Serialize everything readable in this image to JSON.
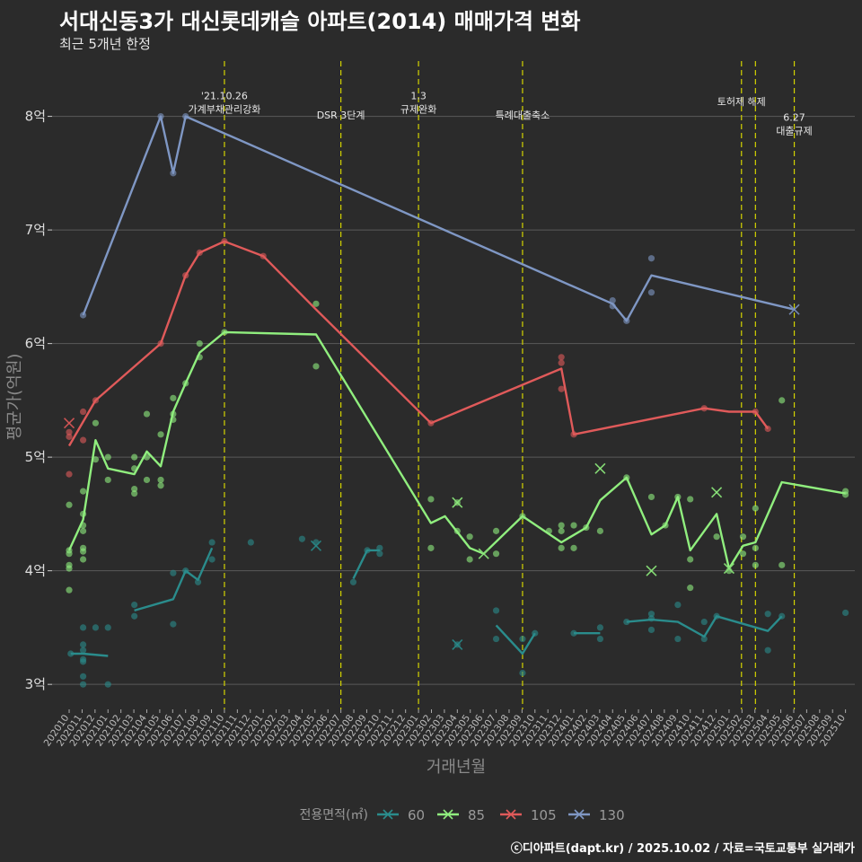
{
  "header": {
    "title": "서대신동3가 대신롯데캐슬 아파트(2014) 매매가격 변화",
    "subtitle": "최근 5개년 한정",
    "caption": "ⓒ디아파트(dapt.kr) / 2025.10.02 / 자료=국토교통부 실거래가"
  },
  "chart_data": {
    "type": "line",
    "title": "서대신동3가 대신롯데캐슬 아파트(2014) 매매가격 변화",
    "xlabel": "거래년월",
    "ylabel": "평균가(억원)",
    "ylim": [
      2.78,
      8.55
    ],
    "xlim": [
      2020.68,
      2025.85
    ],
    "yticks": [
      3,
      4,
      5,
      6,
      7,
      8
    ],
    "ytick_labels": [
      "3억",
      "4억",
      "5억",
      "6억",
      "7억",
      "8억"
    ],
    "xtick_labels": [
      "202010",
      "202011",
      "202012",
      "202101",
      "202102",
      "202103",
      "202104",
      "202105",
      "202106",
      "202107",
      "202108",
      "202109",
      "202110",
      "202111",
      "202112",
      "202201",
      "202202",
      "202203",
      "202204",
      "202205",
      "202206",
      "202207",
      "202208",
      "202209",
      "202210",
      "202211",
      "202212",
      "202301",
      "202302",
      "202303",
      "202304",
      "202305",
      "202306",
      "202307",
      "202308",
      "202309",
      "202310",
      "202311",
      "202312",
      "202401",
      "202402",
      "202403",
      "202404",
      "202405",
      "202406",
      "202407",
      "202408",
      "202409",
      "202410",
      "202411",
      "202412",
      "202501",
      "202502",
      "202503",
      "202504",
      "202505",
      "202506",
      "202507",
      "202508",
      "202509",
      "202510"
    ],
    "legend": {
      "title": "전용면적(㎡)",
      "position": "bottom"
    },
    "events": [
      {
        "x": 2021.79,
        "label_lines": [
          "'21.10.26",
          "가계부채관리강화"
        ],
        "label_y": 8.15
      },
      {
        "x": 2022.54,
        "label_lines": [
          "DSR 3단계"
        ],
        "label_y": 7.98
      },
      {
        "x": 2023.04,
        "label_lines": [
          "1.3",
          "규제완화"
        ],
        "label_y": 8.15
      },
      {
        "x": 2023.71,
        "label_lines": [
          "특례대출축소"
        ],
        "label_y": 7.98
      },
      {
        "x": 2025.12,
        "label_lines": [
          "토허제 해제"
        ],
        "label_y": 8.1
      },
      {
        "x": 2025.21,
        "label_lines": [],
        "label_y": 8.1
      },
      {
        "x": 2025.46,
        "label_lines": [
          "6.27",
          "대출규제"
        ],
        "label_y": 7.96
      }
    ],
    "series": [
      {
        "name": "60",
        "color": "#2a8c8c",
        "segments": [
          [
            [
              2020.8,
              3.27
            ],
            [
              2020.88,
              3.27
            ],
            [
              2021.04,
              3.25
            ]
          ],
          [
            [
              2021.21,
              3.65
            ],
            [
              2021.46,
              3.75
            ],
            [
              2021.54,
              4.0
            ],
            [
              2021.62,
              3.92
            ],
            [
              2021.71,
              4.2
            ]
          ],
          [
            [
              2022.38,
              4.22
            ]
          ],
          [
            [
              2022.62,
              3.93
            ],
            [
              2022.71,
              4.18
            ],
            [
              2022.79,
              4.18
            ]
          ],
          [
            [
              2023.29,
              3.35
            ]
          ],
          [
            [
              2023.54,
              3.52
            ],
            [
              2023.71,
              3.27
            ],
            [
              2023.79,
              3.45
            ]
          ],
          [
            [
              2024.04,
              3.45
            ],
            [
              2024.21,
              3.45
            ]
          ],
          [
            [
              2024.38,
              3.55
            ],
            [
              2024.54,
              3.57
            ],
            [
              2024.71,
              3.55
            ],
            [
              2024.88,
              3.42
            ],
            [
              2024.96,
              3.6
            ],
            [
              2025.29,
              3.47
            ],
            [
              2025.38,
              3.6
            ]
          ]
        ],
        "points": [
          [
            2020.8,
            3.27
          ],
          [
            2020.88,
            3.3
          ],
          [
            2020.88,
            3.22
          ],
          [
            2020.88,
            3.2
          ],
          [
            2020.88,
            3.35
          ],
          [
            2020.88,
            3.5
          ],
          [
            2020.88,
            3.07
          ],
          [
            2020.88,
            3.0
          ],
          [
            2020.96,
            3.5
          ],
          [
            2021.04,
            3.5
          ],
          [
            2021.04,
            3.0
          ],
          [
            2021.21,
            3.7
          ],
          [
            2021.21,
            3.6
          ],
          [
            2021.46,
            3.98
          ],
          [
            2021.46,
            3.53
          ],
          [
            2021.54,
            4.0
          ],
          [
            2021.62,
            3.9
          ],
          [
            2021.71,
            4.25
          ],
          [
            2021.71,
            4.1
          ],
          [
            2021.96,
            4.25
          ],
          [
            2022.29,
            4.28
          ],
          [
            2022.38,
            4.25
          ],
          [
            2022.62,
            3.9
          ],
          [
            2022.71,
            4.18
          ],
          [
            2022.79,
            4.2
          ],
          [
            2022.79,
            4.15
          ],
          [
            2023.29,
            3.35
          ],
          [
            2023.54,
            3.65
          ],
          [
            2023.54,
            3.4
          ],
          [
            2023.71,
            3.1
          ],
          [
            2023.71,
            3.4
          ],
          [
            2023.79,
            3.45
          ],
          [
            2024.04,
            3.45
          ],
          [
            2024.21,
            3.5
          ],
          [
            2024.21,
            3.4
          ],
          [
            2024.38,
            3.55
          ],
          [
            2024.54,
            3.62
          ],
          [
            2024.54,
            3.58
          ],
          [
            2024.54,
            3.48
          ],
          [
            2024.71,
            3.7
          ],
          [
            2024.71,
            3.4
          ],
          [
            2024.88,
            3.55
          ],
          [
            2024.88,
            3.4
          ],
          [
            2024.96,
            3.6
          ],
          [
            2025.29,
            3.62
          ],
          [
            2025.29,
            3.3
          ],
          [
            2025.38,
            3.6
          ],
          [
            2025.79,
            3.63
          ]
        ],
        "x_marks": [
          [
            2022.38,
            4.22
          ],
          [
            2023.29,
            3.35
          ]
        ]
      },
      {
        "name": "85",
        "color": "#90ee7e",
        "segments": [
          [
            [
              2020.79,
              4.18
            ],
            [
              2020.88,
              4.45
            ],
            [
              2020.96,
              5.15
            ],
            [
              2021.04,
              4.9
            ],
            [
              2021.21,
              4.85
            ],
            [
              2021.29,
              5.05
            ],
            [
              2021.38,
              4.92
            ],
            [
              2021.46,
              5.4
            ],
            [
              2021.54,
              5.65
            ],
            [
              2021.63,
              5.92
            ],
            [
              2021.79,
              6.1
            ],
            [
              2022.38,
              6.08
            ],
            [
              2023.12,
              4.42
            ],
            [
              2023.21,
              4.48
            ],
            [
              2023.37,
              4.2
            ],
            [
              2023.46,
              4.15
            ],
            [
              2023.71,
              4.48
            ],
            [
              2023.96,
              4.25
            ],
            [
              2024.12,
              4.38
            ],
            [
              2024.21,
              4.62
            ],
            [
              2024.38,
              4.82
            ],
            [
              2024.54,
              4.32
            ],
            [
              2024.63,
              4.4
            ],
            [
              2024.71,
              4.65
            ],
            [
              2024.79,
              4.18
            ],
            [
              2024.96,
              4.5
            ],
            [
              2025.04,
              4.02
            ],
            [
              2025.13,
              4.22
            ],
            [
              2025.21,
              4.25
            ],
            [
              2025.38,
              4.78
            ],
            [
              2025.79,
              4.68
            ]
          ]
        ],
        "points": [
          [
            2020.79,
            4.58
          ],
          [
            2020.79,
            4.18
          ],
          [
            2020.79,
            4.15
          ],
          [
            2020.79,
            4.05
          ],
          [
            2020.79,
            4.02
          ],
          [
            2020.79,
            3.83
          ],
          [
            2020.88,
            4.7
          ],
          [
            2020.88,
            4.5
          ],
          [
            2020.88,
            4.4
          ],
          [
            2020.88,
            4.35
          ],
          [
            2020.88,
            4.2
          ],
          [
            2020.88,
            4.17
          ],
          [
            2020.88,
            4.1
          ],
          [
            2020.96,
            5.3
          ],
          [
            2020.96,
            4.98
          ],
          [
            2021.04,
            5.0
          ],
          [
            2021.04,
            4.8
          ],
          [
            2021.21,
            4.72
          ],
          [
            2021.21,
            4.68
          ],
          [
            2021.21,
            4.9
          ],
          [
            2021.21,
            5.0
          ],
          [
            2021.29,
            5.38
          ],
          [
            2021.29,
            5.0
          ],
          [
            2021.29,
            4.8
          ],
          [
            2021.38,
            5.2
          ],
          [
            2021.38,
            4.8
          ],
          [
            2021.38,
            4.75
          ],
          [
            2021.46,
            5.52
          ],
          [
            2021.46,
            5.38
          ],
          [
            2021.46,
            5.33
          ],
          [
            2021.54,
            5.65
          ],
          [
            2021.63,
            6.0
          ],
          [
            2021.63,
            5.88
          ],
          [
            2021.79,
            6.1
          ],
          [
            2022.38,
            6.35
          ],
          [
            2022.38,
            5.8
          ],
          [
            2023.12,
            4.63
          ],
          [
            2023.12,
            4.2
          ],
          [
            2023.29,
            4.6
          ],
          [
            2023.29,
            4.35
          ],
          [
            2023.37,
            4.3
          ],
          [
            2023.37,
            4.1
          ],
          [
            2023.54,
            4.15
          ],
          [
            2023.54,
            4.35
          ],
          [
            2023.71,
            4.48
          ],
          [
            2023.88,
            4.35
          ],
          [
            2023.96,
            4.4
          ],
          [
            2023.96,
            4.35
          ],
          [
            2023.96,
            4.2
          ],
          [
            2024.04,
            4.4
          ],
          [
            2024.04,
            4.2
          ],
          [
            2024.12,
            4.38
          ],
          [
            2024.21,
            4.35
          ],
          [
            2024.38,
            4.82
          ],
          [
            2024.54,
            4.65
          ],
          [
            2024.63,
            4.4
          ],
          [
            2024.71,
            4.65
          ],
          [
            2024.79,
            4.63
          ],
          [
            2024.79,
            4.1
          ],
          [
            2024.79,
            3.85
          ],
          [
            2024.96,
            4.3
          ],
          [
            2025.04,
            4.0
          ],
          [
            2025.13,
            4.3
          ],
          [
            2025.13,
            4.15
          ],
          [
            2025.21,
            4.55
          ],
          [
            2025.21,
            4.2
          ],
          [
            2025.21,
            4.05
          ],
          [
            2025.38,
            5.5
          ],
          [
            2025.38,
            4.05
          ],
          [
            2025.79,
            4.7
          ],
          [
            2025.79,
            4.67
          ]
        ],
        "x_marks": [
          [
            2023.29,
            4.6
          ],
          [
            2023.46,
            4.15
          ],
          [
            2024.21,
            4.9
          ],
          [
            2024.54,
            4.0
          ],
          [
            2024.96,
            4.69
          ],
          [
            2025.04,
            4.02
          ]
        ]
      },
      {
        "name": "105",
        "color": "#e05a5a",
        "segments": [
          [
            [
              2020.79,
              5.1
            ],
            [
              2020.96,
              5.5
            ],
            [
              2021.38,
              6.0
            ],
            [
              2021.54,
              6.6
            ],
            [
              2021.63,
              6.8
            ],
            [
              2021.79,
              6.9
            ],
            [
              2022.04,
              6.77
            ],
            [
              2022.38,
              6.3
            ],
            [
              2023.12,
              5.3
            ],
            [
              2023.96,
              5.78
            ],
            [
              2024.04,
              5.2
            ],
            [
              2024.88,
              5.43
            ],
            [
              2025.04,
              5.4
            ],
            [
              2025.21,
              5.4
            ],
            [
              2025.29,
              5.25
            ]
          ]
        ],
        "points": [
          [
            2020.79,
            5.22
          ],
          [
            2020.79,
            5.18
          ],
          [
            2020.79,
            4.85
          ],
          [
            2020.88,
            5.4
          ],
          [
            2020.88,
            5.15
          ],
          [
            2020.96,
            5.5
          ],
          [
            2021.38,
            6.0
          ],
          [
            2021.54,
            6.6
          ],
          [
            2021.63,
            6.8
          ],
          [
            2021.79,
            6.9
          ],
          [
            2022.04,
            6.77
          ],
          [
            2023.12,
            5.3
          ],
          [
            2023.96,
            5.88
          ],
          [
            2023.96,
            5.83
          ],
          [
            2023.96,
            5.6
          ],
          [
            2024.04,
            5.2
          ],
          [
            2024.88,
            5.43
          ],
          [
            2025.21,
            5.4
          ],
          [
            2025.29,
            5.25
          ]
        ],
        "x_marks": [
          [
            2020.79,
            5.3
          ]
        ]
      },
      {
        "name": "130",
        "color": "#7f97c4",
        "segments": [
          [
            [
              2020.88,
              6.25
            ],
            [
              2021.38,
              8.0
            ],
            [
              2021.46,
              7.5
            ],
            [
              2021.54,
              8.0
            ],
            [
              2024.29,
              6.35
            ],
            [
              2024.38,
              6.2
            ],
            [
              2024.54,
              6.6
            ],
            [
              2025.46,
              6.3
            ]
          ]
        ],
        "points": [
          [
            2020.88,
            6.25
          ],
          [
            2021.38,
            8.0
          ],
          [
            2021.46,
            7.5
          ],
          [
            2021.54,
            8.0
          ],
          [
            2024.29,
            6.38
          ],
          [
            2024.29,
            6.33
          ],
          [
            2024.38,
            6.2
          ],
          [
            2024.54,
            6.75
          ],
          [
            2024.54,
            6.45
          ]
        ],
        "x_marks": [
          [
            2025.46,
            6.3
          ]
        ]
      }
    ]
  }
}
